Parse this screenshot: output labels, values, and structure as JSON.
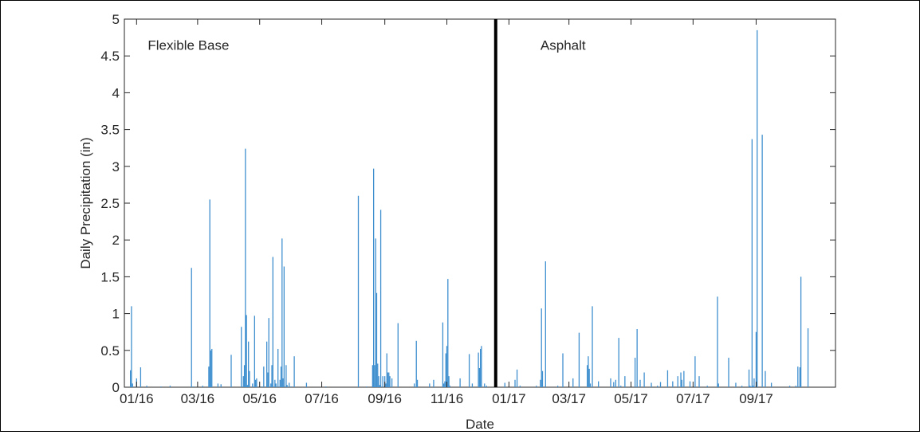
{
  "chart_data": {
    "type": "bar",
    "xlabel": "Date",
    "ylabel": "Daily Precipitation (in)",
    "ylim": [
      0,
      5
    ],
    "yticks": [
      "0",
      "0.5",
      "1",
      "1.5",
      "2",
      "2.5",
      "3",
      "3.5",
      "4",
      "4.5",
      "5"
    ],
    "xlim": [
      "2015-12-20",
      "2017-11-18"
    ],
    "xticks": [
      {
        "date": "2016-01-01",
        "label": "01/16"
      },
      {
        "date": "2016-03-01",
        "label": "03/16"
      },
      {
        "date": "2016-05-01",
        "label": "05/16"
      },
      {
        "date": "2016-07-01",
        "label": "07/16"
      },
      {
        "date": "2016-09-01",
        "label": "09/16"
      },
      {
        "date": "2016-11-01",
        "label": "11/16"
      },
      {
        "date": "2017-01-01",
        "label": "01/17"
      },
      {
        "date": "2017-03-01",
        "label": "03/17"
      },
      {
        "date": "2017-05-01",
        "label": "05/17"
      },
      {
        "date": "2017-07-01",
        "label": "07/17"
      },
      {
        "date": "2017-09-01",
        "label": "09/17"
      }
    ],
    "divider_date": "2016-12-19",
    "annotations": [
      {
        "text": "Flexible Base",
        "date": "2016-01-12",
        "y": 4.65
      },
      {
        "text": "Asphalt",
        "date": "2017-02-01",
        "y": 4.65
      }
    ],
    "grid": false,
    "bar_color": "#3f8fcf",
    "x": [
      "2015-12-26",
      "2015-12-27",
      "2015-12-28",
      "2016-01-01",
      "2016-01-05",
      "2016-01-11",
      "2016-01-25",
      "2016-02-03",
      "2016-02-24",
      "2016-02-26",
      "2016-03-06",
      "2016-03-12",
      "2016-03-13",
      "2016-03-14",
      "2016-03-15",
      "2016-03-21",
      "2016-03-24",
      "2016-04-03",
      "2016-04-13",
      "2016-04-15",
      "2016-04-16",
      "2016-04-17",
      "2016-04-18",
      "2016-04-19",
      "2016-04-20",
      "2016-04-21",
      "2016-04-24",
      "2016-04-26",
      "2016-04-27",
      "2016-04-28",
      "2016-05-03",
      "2016-05-05",
      "2016-05-08",
      "2016-05-09",
      "2016-05-10",
      "2016-05-12",
      "2016-05-13",
      "2016-05-14",
      "2016-05-16",
      "2016-05-17",
      "2016-05-19",
      "2016-05-21",
      "2016-05-22",
      "2016-05-23",
      "2016-05-24",
      "2016-05-25",
      "2016-05-27",
      "2016-05-28",
      "2016-05-30",
      "2016-06-01",
      "2016-06-04",
      "2016-06-16",
      "2016-07-05",
      "2016-08-06",
      "2016-08-14",
      "2016-08-20",
      "2016-08-21",
      "2016-08-22",
      "2016-08-23",
      "2016-08-24",
      "2016-08-25",
      "2016-08-26",
      "2016-08-27",
      "2016-08-28",
      "2016-08-30",
      "2016-09-01",
      "2016-09-02",
      "2016-09-03",
      "2016-09-04",
      "2016-09-05",
      "2016-09-06",
      "2016-09-08",
      "2016-09-14",
      "2016-09-30",
      "2016-10-02",
      "2016-10-03",
      "2016-10-15",
      "2016-10-19",
      "2016-10-28",
      "2016-10-29",
      "2016-10-30",
      "2016-10-31",
      "2016-11-01",
      "2016-11-02",
      "2016-11-03",
      "2016-11-04",
      "2016-11-14",
      "2016-11-23",
      "2016-11-26",
      "2016-12-02",
      "2016-12-03",
      "2016-12-04",
      "2016-12-05",
      "2016-12-08",
      "2016-12-10",
      "2016-12-28",
      "2017-01-07",
      "2017-01-09",
      "2017-01-12",
      "2017-01-28",
      "2017-02-01",
      "2017-02-02",
      "2017-02-03",
      "2017-02-06",
      "2017-02-18",
      "2017-02-23",
      "2017-03-05",
      "2017-03-11",
      "2017-03-19",
      "2017-03-20",
      "2017-03-21",
      "2017-03-22",
      "2017-03-24",
      "2017-03-30",
      "2017-04-11",
      "2017-04-14",
      "2017-04-16",
      "2017-04-19",
      "2017-04-21",
      "2017-04-25",
      "2017-05-05",
      "2017-05-07",
      "2017-05-10",
      "2017-05-14",
      "2017-05-21",
      "2017-05-27",
      "2017-05-30",
      "2017-06-06",
      "2017-06-11",
      "2017-06-16",
      "2017-06-19",
      "2017-06-20",
      "2017-06-22",
      "2017-06-28",
      "2017-07-03",
      "2017-07-07",
      "2017-07-15",
      "2017-07-25",
      "2017-07-26",
      "2017-08-05",
      "2017-08-12",
      "2017-08-18",
      "2017-08-25",
      "2017-08-26",
      "2017-08-27",
      "2017-08-28",
      "2017-08-29",
      "2017-08-30",
      "2017-09-01",
      "2017-09-02",
      "2017-09-07",
      "2017-09-10",
      "2017-09-16",
      "2017-10-04",
      "2017-10-10",
      "2017-10-12",
      "2017-10-14",
      "2017-10-15",
      "2017-10-22"
    ],
    "values": [
      0.23,
      1.1,
      0.05,
      0.12,
      0.27,
      0.02,
      0.01,
      0.02,
      1.62,
      0.01,
      0.02,
      0.28,
      2.55,
      0.5,
      0.52,
      0.05,
      0.04,
      0.44,
      0.82,
      0.15,
      0.3,
      3.24,
      0.98,
      0.03,
      0.62,
      0.22,
      0.05,
      0.97,
      0.1,
      0.12,
      0.01,
      0.28,
      0.62,
      0.2,
      0.94,
      0.05,
      0.3,
      1.77,
      0.1,
      0.05,
      0.52,
      0.1,
      0.28,
      2.02,
      0.12,
      1.64,
      0.3,
      0.03,
      0.06,
      0.01,
      0.42,
      0.06,
      0.01,
      2.6,
      0.01,
      0.3,
      2.97,
      0.3,
      2.02,
      1.28,
      0.32,
      0.15,
      0.03,
      2.41,
      0.15,
      0.15,
      0.05,
      0.46,
      0.2,
      0.2,
      0.15,
      0.12,
      0.87,
      0.05,
      0.63,
      0.1,
      0.05,
      0.1,
      0.88,
      0.05,
      0.08,
      0.46,
      0.56,
      1.47,
      0.15,
      0.02,
      0.12,
      0.45,
      0.05,
      0.47,
      0.26,
      0.52,
      0.56,
      0.05,
      0.02,
      0.06,
      0.1,
      0.24,
      0.02,
      0.02,
      0.1,
      1.07,
      0.22,
      1.71,
      0.02,
      0.46,
      0.12,
      0.74,
      0.3,
      0.42,
      0.25,
      0.05,
      1.1,
      0.08,
      0.12,
      0.07,
      0.1,
      0.67,
      0.02,
      0.15,
      0.4,
      0.79,
      0.1,
      0.2,
      0.06,
      0.02,
      0.07,
      0.23,
      0.08,
      0.15,
      0.2,
      0.1,
      0.22,
      0.08,
      0.42,
      0.15,
      0.02,
      1.23,
      0.05,
      0.4,
      0.06,
      0.02,
      0.24,
      0.02,
      0.01,
      3.37,
      0.02,
      0.12,
      0.75,
      4.85,
      3.43,
      0.22,
      0.06,
      0.02,
      0.02,
      0.28,
      0.27,
      1.5,
      0.8
    ]
  }
}
